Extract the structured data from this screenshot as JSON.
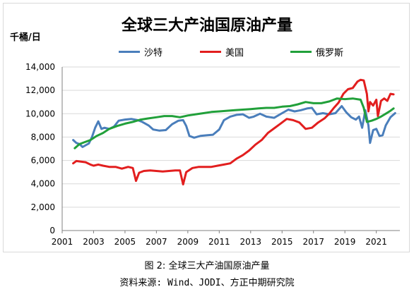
{
  "caption": "图 2: 全球三大产油国原油产量",
  "source": "资料来源: Wind、JODI、方正中期研究院",
  "chart_data": {
    "type": "line",
    "title": "全球三大产油国原油产量",
    "ylabel": "千桶/日",
    "xlabel": "",
    "ylim": [
      0,
      14000
    ],
    "xlim": [
      2001,
      2022.5
    ],
    "y_ticks": [
      0,
      2000,
      4000,
      6000,
      8000,
      10000,
      12000,
      14000
    ],
    "y_tick_labels": [
      "0",
      "2,000",
      "4,000",
      "6,000",
      "8,000",
      "10,000",
      "12,000",
      "14,000"
    ],
    "x_ticks": [
      2001,
      2003,
      2005,
      2007,
      2009,
      2011,
      2013,
      2015,
      2017,
      2019,
      2021
    ],
    "x_tick_labels": [
      "2001",
      "2003",
      "2005",
      "2007",
      "2009",
      "2011",
      "2013",
      "2015",
      "2017",
      "2019",
      "2021"
    ],
    "grid": "horizontal",
    "legend_position": "top",
    "series": [
      {
        "name": "沙特",
        "color": "#4a7ebb",
        "points": [
          [
            2001.7,
            7750
          ],
          [
            2001.9,
            7500
          ],
          [
            2002.1,
            7400
          ],
          [
            2002.3,
            7150
          ],
          [
            2002.5,
            7300
          ],
          [
            2002.7,
            7450
          ],
          [
            2002.9,
            8000
          ],
          [
            2003.1,
            8800
          ],
          [
            2003.3,
            9350
          ],
          [
            2003.5,
            8700
          ],
          [
            2003.7,
            8800
          ],
          [
            2004.0,
            8700
          ],
          [
            2004.3,
            8900
          ],
          [
            2004.6,
            9400
          ],
          [
            2005.0,
            9500
          ],
          [
            2005.4,
            9550
          ],
          [
            2005.8,
            9450
          ],
          [
            2006.1,
            9300
          ],
          [
            2006.5,
            9000
          ],
          [
            2006.8,
            8650
          ],
          [
            2007.2,
            8550
          ],
          [
            2007.6,
            8600
          ],
          [
            2008.0,
            9100
          ],
          [
            2008.4,
            9400
          ],
          [
            2008.7,
            9450
          ],
          [
            2008.9,
            8950
          ],
          [
            2009.1,
            8100
          ],
          [
            2009.4,
            7950
          ],
          [
            2009.8,
            8100
          ],
          [
            2010.2,
            8150
          ],
          [
            2010.6,
            8200
          ],
          [
            2011.0,
            8650
          ],
          [
            2011.3,
            9450
          ],
          [
            2011.7,
            9750
          ],
          [
            2012.1,
            9900
          ],
          [
            2012.5,
            9950
          ],
          [
            2012.9,
            9650
          ],
          [
            2013.2,
            9750
          ],
          [
            2013.6,
            10000
          ],
          [
            2014.0,
            9750
          ],
          [
            2014.5,
            9650
          ],
          [
            2015.0,
            10050
          ],
          [
            2015.4,
            10350
          ],
          [
            2015.8,
            10200
          ],
          [
            2016.2,
            10300
          ],
          [
            2016.6,
            10450
          ],
          [
            2016.9,
            10500
          ],
          [
            2017.2,
            9950
          ],
          [
            2017.6,
            10050
          ],
          [
            2018.0,
            9950
          ],
          [
            2018.4,
            10050
          ],
          [
            2018.8,
            10650
          ],
          [
            2019.1,
            10100
          ],
          [
            2019.4,
            9700
          ],
          [
            2019.7,
            9500
          ],
          [
            2019.9,
            9750
          ],
          [
            2020.1,
            8800
          ],
          [
            2020.3,
            10300
          ],
          [
            2020.5,
            9000
          ],
          [
            2020.6,
            7500
          ],
          [
            2020.8,
            8600
          ],
          [
            2021.0,
            8700
          ],
          [
            2021.2,
            8100
          ],
          [
            2021.4,
            8150
          ],
          [
            2021.6,
            9000
          ],
          [
            2021.9,
            9700
          ],
          [
            2022.2,
            10050
          ]
        ]
      },
      {
        "name": "美国",
        "color": "#e21e1e",
        "points": [
          [
            2001.7,
            5750
          ],
          [
            2001.9,
            5950
          ],
          [
            2002.2,
            5900
          ],
          [
            2002.5,
            5850
          ],
          [
            2002.8,
            5650
          ],
          [
            2003.0,
            5550
          ],
          [
            2003.3,
            5650
          ],
          [
            2003.6,
            5550
          ],
          [
            2004.0,
            5450
          ],
          [
            2004.4,
            5450
          ],
          [
            2004.8,
            5300
          ],
          [
            2005.2,
            5450
          ],
          [
            2005.5,
            5350
          ],
          [
            2005.7,
            4250
          ],
          [
            2005.9,
            4950
          ],
          [
            2006.2,
            5100
          ],
          [
            2006.6,
            5150
          ],
          [
            2007.0,
            5100
          ],
          [
            2007.4,
            5050
          ],
          [
            2007.8,
            5100
          ],
          [
            2008.2,
            5150
          ],
          [
            2008.5,
            5150
          ],
          [
            2008.7,
            3950
          ],
          [
            2008.9,
            5000
          ],
          [
            2009.3,
            5350
          ],
          [
            2009.7,
            5450
          ],
          [
            2010.1,
            5450
          ],
          [
            2010.5,
            5450
          ],
          [
            2010.9,
            5550
          ],
          [
            2011.3,
            5650
          ],
          [
            2011.7,
            5750
          ],
          [
            2012.1,
            6150
          ],
          [
            2012.5,
            6450
          ],
          [
            2012.9,
            6850
          ],
          [
            2013.3,
            7350
          ],
          [
            2013.7,
            7750
          ],
          [
            2014.1,
            8350
          ],
          [
            2014.5,
            8750
          ],
          [
            2014.9,
            9150
          ],
          [
            2015.3,
            9550
          ],
          [
            2015.7,
            9450
          ],
          [
            2016.1,
            9250
          ],
          [
            2016.5,
            8700
          ],
          [
            2016.9,
            8800
          ],
          [
            2017.3,
            9250
          ],
          [
            2017.7,
            9600
          ],
          [
            2018.0,
            10000
          ],
          [
            2018.3,
            10500
          ],
          [
            2018.6,
            10950
          ],
          [
            2018.9,
            11700
          ],
          [
            2019.2,
            12100
          ],
          [
            2019.5,
            12200
          ],
          [
            2019.8,
            12750
          ],
          [
            2020.0,
            12900
          ],
          [
            2020.2,
            12850
          ],
          [
            2020.4,
            11700
          ],
          [
            2020.5,
            10200
          ],
          [
            2020.6,
            11000
          ],
          [
            2020.8,
            10700
          ],
          [
            2021.0,
            11200
          ],
          [
            2021.1,
            9800
          ],
          [
            2021.3,
            11100
          ],
          [
            2021.5,
            11300
          ],
          [
            2021.7,
            11100
          ],
          [
            2021.9,
            11700
          ],
          [
            2022.1,
            11650
          ]
        ]
      },
      {
        "name": "俄罗斯",
        "color": "#21a03a",
        "points": [
          [
            2001.8,
            7050
          ],
          [
            2002.1,
            7400
          ],
          [
            2002.4,
            7550
          ],
          [
            2002.8,
            7750
          ],
          [
            2003.2,
            8100
          ],
          [
            2003.6,
            8350
          ],
          [
            2004.0,
            8700
          ],
          [
            2004.5,
            8950
          ],
          [
            2005.0,
            9150
          ],
          [
            2005.5,
            9300
          ],
          [
            2006.0,
            9500
          ],
          [
            2006.5,
            9600
          ],
          [
            2007.0,
            9700
          ],
          [
            2007.5,
            9800
          ],
          [
            2008.0,
            9800
          ],
          [
            2008.5,
            9700
          ],
          [
            2009.0,
            9850
          ],
          [
            2009.5,
            9950
          ],
          [
            2010.0,
            10050
          ],
          [
            2010.5,
            10150
          ],
          [
            2011.0,
            10200
          ],
          [
            2011.5,
            10250
          ],
          [
            2012.0,
            10300
          ],
          [
            2012.5,
            10350
          ],
          [
            2013.0,
            10400
          ],
          [
            2013.5,
            10450
          ],
          [
            2014.0,
            10500
          ],
          [
            2014.5,
            10500
          ],
          [
            2015.0,
            10600
          ],
          [
            2015.5,
            10650
          ],
          [
            2016.0,
            10800
          ],
          [
            2016.5,
            11000
          ],
          [
            2017.0,
            10900
          ],
          [
            2017.5,
            10900
          ],
          [
            2018.0,
            11050
          ],
          [
            2018.5,
            11300
          ],
          [
            2019.0,
            11250
          ],
          [
            2019.5,
            11300
          ],
          [
            2020.0,
            11200
          ],
          [
            2020.2,
            10500
          ],
          [
            2020.4,
            9300
          ],
          [
            2020.7,
            9400
          ],
          [
            2021.0,
            9550
          ],
          [
            2021.3,
            9750
          ],
          [
            2021.6,
            10000
          ],
          [
            2021.9,
            10250
          ],
          [
            2022.1,
            10450
          ]
        ]
      }
    ]
  }
}
